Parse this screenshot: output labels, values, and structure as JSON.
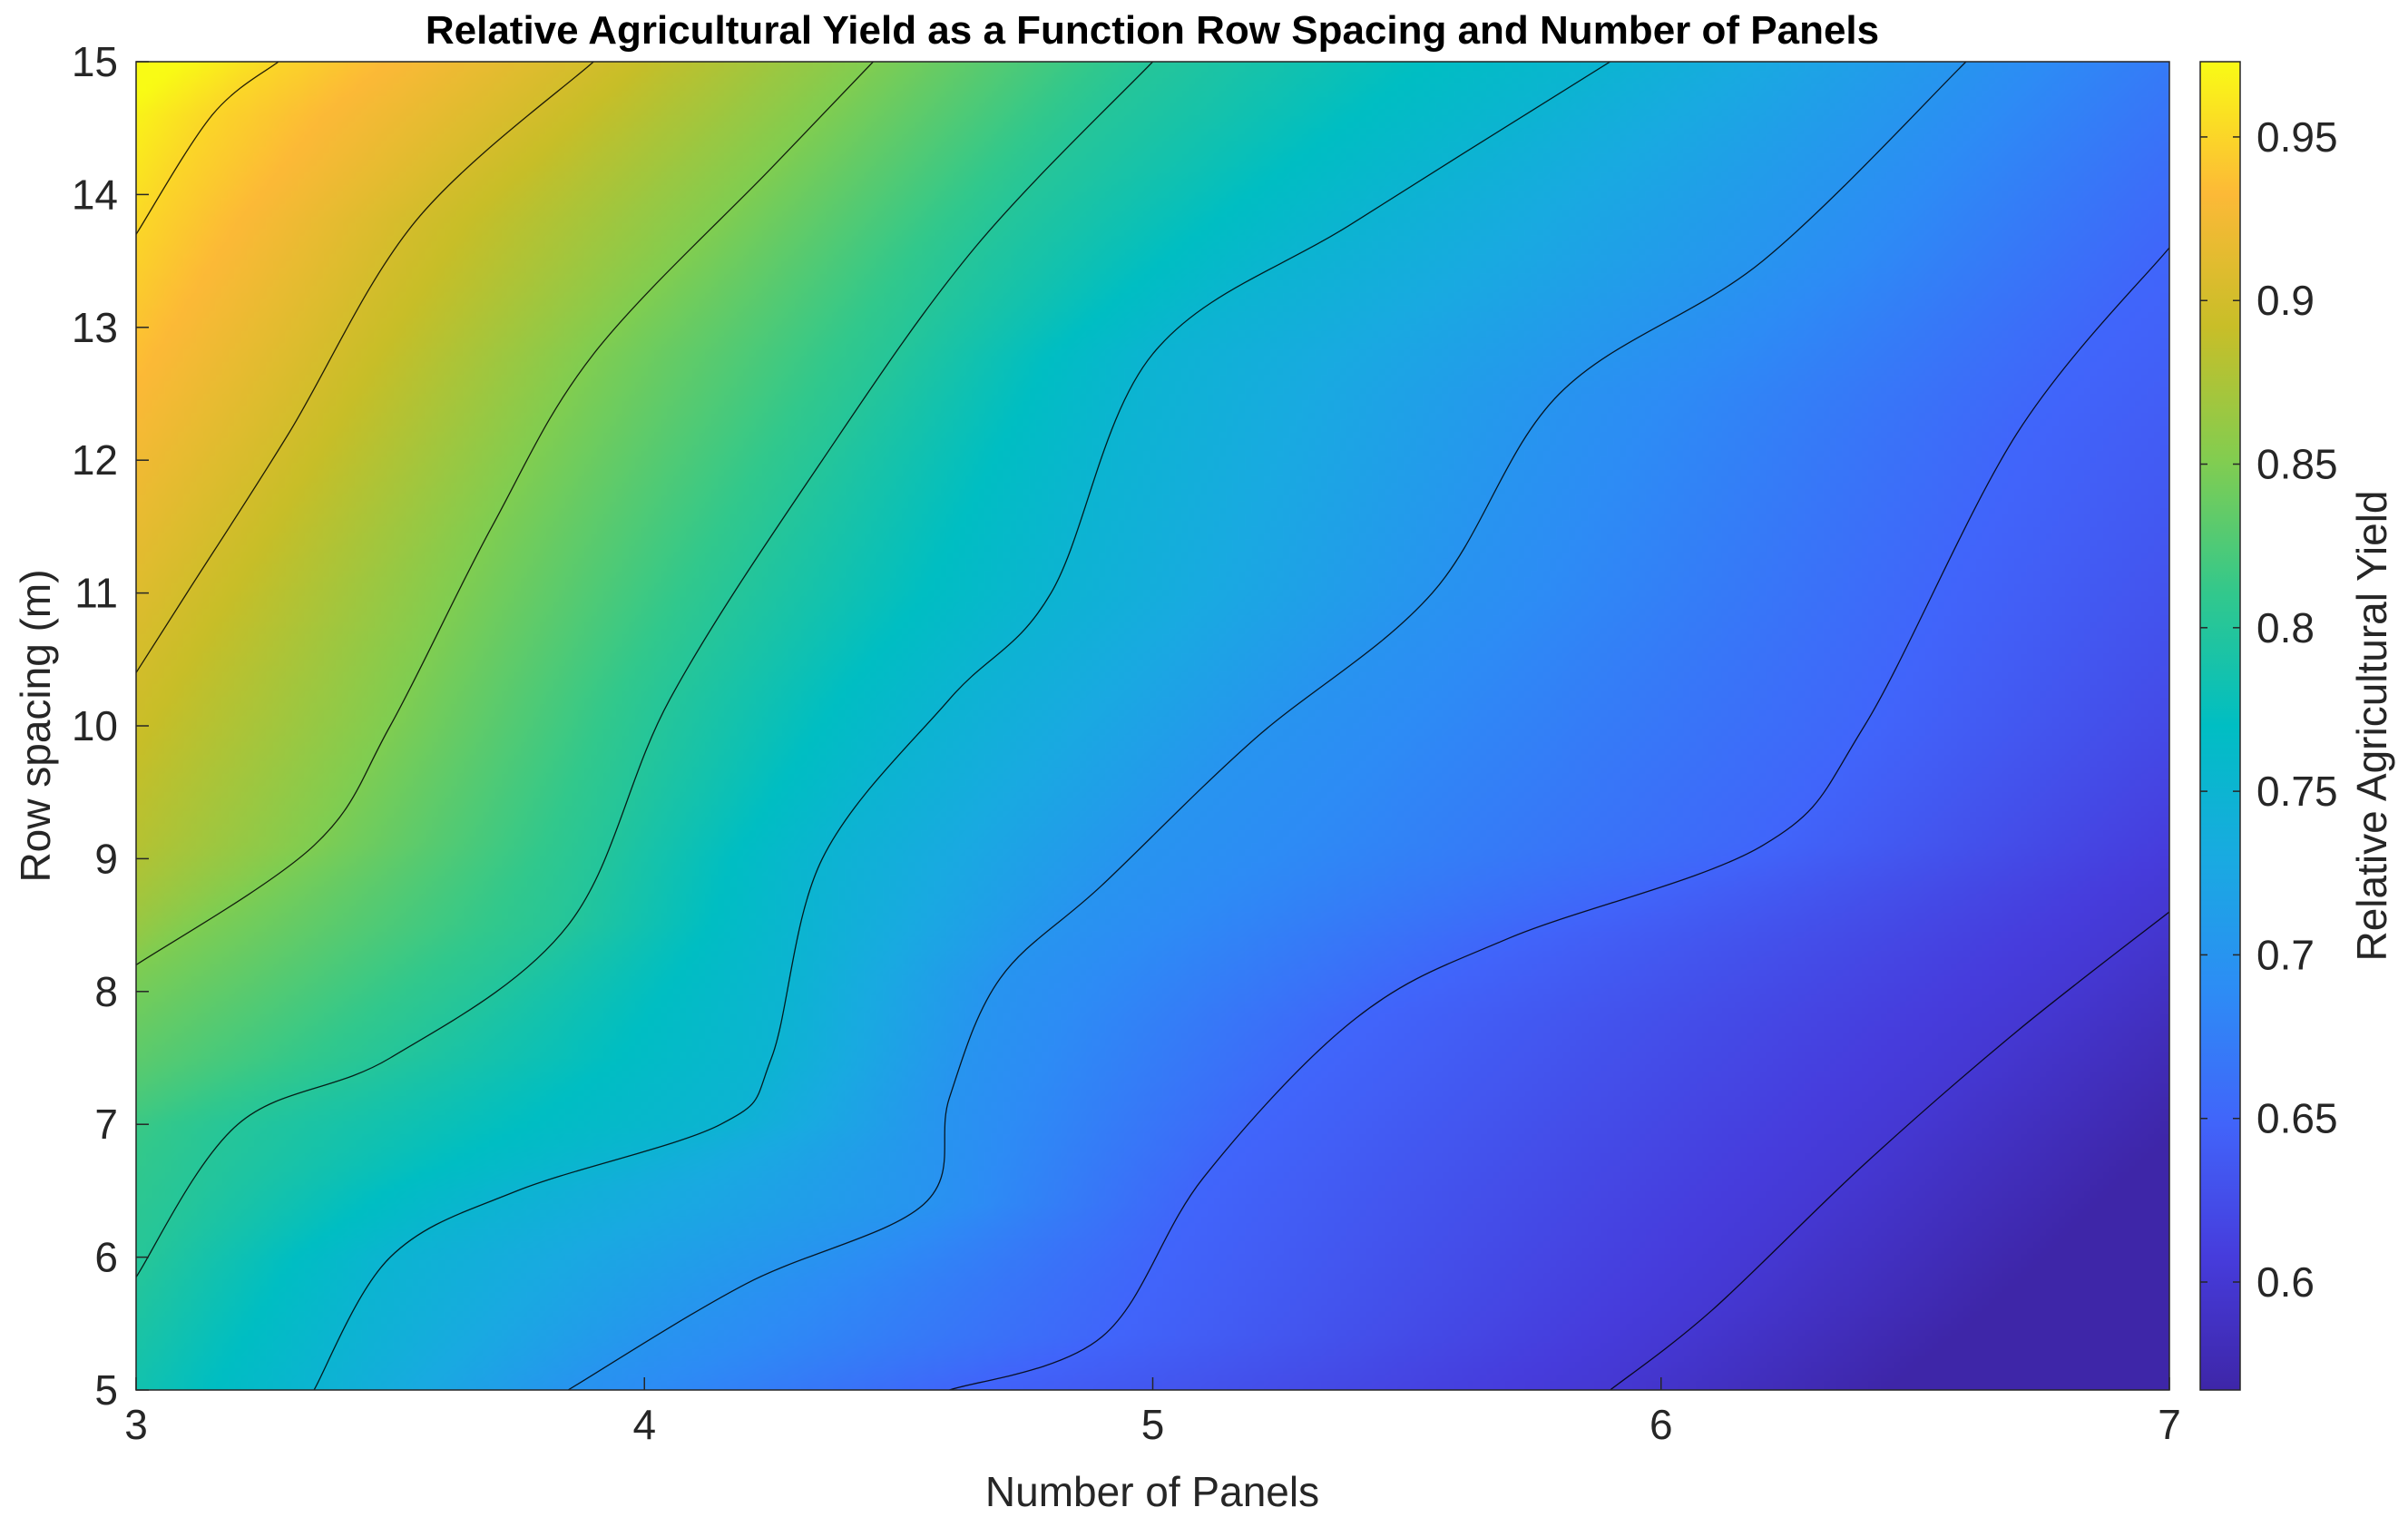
{
  "chart_data": {
    "type": "contour",
    "title": "Relative Agricultural Yield as a Function Row Spacing and Number of Panels",
    "xlabel": "Number of Panels",
    "ylabel": "Row spacing (m)",
    "colorbar_label": "Relative Agricultural Yield",
    "xlim": [
      3,
      7
    ],
    "ylim": [
      5,
      15
    ],
    "x_ticks": [
      "3",
      "4",
      "5",
      "6",
      "7"
    ],
    "y_ticks": [
      "5",
      "6",
      "7",
      "8",
      "9",
      "10",
      "11",
      "12",
      "13",
      "14",
      "15"
    ],
    "clim": [
      0.567,
      0.973
    ],
    "colorbar_ticks": [
      "0.6",
      "0.65",
      "0.7",
      "0.75",
      "0.8",
      "0.85",
      "0.9",
      "0.95"
    ],
    "colormap": "parula",
    "contour_levels": [
      0.6,
      0.65,
      0.7,
      0.75,
      0.8,
      0.85,
      0.9,
      0.95
    ],
    "z_corners": {
      "x3_y5": 0.77,
      "x7_y5": 0.567,
      "x3_y15": 0.973,
      "x7_y15": 0.68
    },
    "contours": [
      {
        "level": 0.6,
        "points": [
          [
            7,
            8.6
          ],
          [
            6.7,
            7.7
          ],
          [
            6.4,
            6.7
          ],
          [
            6.1,
            5.6
          ],
          [
            5.9,
            5
          ]
        ]
      },
      {
        "level": 0.65,
        "points": [
          [
            7,
            13.6
          ],
          [
            6.7,
            12.2
          ],
          [
            6.4,
            10.0
          ],
          [
            6.2,
            9.1
          ],
          [
            5.7,
            8.4
          ],
          [
            5.4,
            7.8
          ],
          [
            5.1,
            6.6
          ],
          [
            4.9,
            5.4
          ],
          [
            4.6,
            5
          ]
        ]
      },
      {
        "level": 0.7,
        "points": [
          [
            6.6,
            15
          ],
          [
            6.2,
            13.5
          ],
          [
            5.8,
            12.5
          ],
          [
            5.55,
            11.0
          ],
          [
            5.2,
            9.9
          ],
          [
            4.9,
            8.8
          ],
          [
            4.7,
            8.1
          ],
          [
            4.6,
            7.2
          ],
          [
            4.55,
            6.4
          ],
          [
            4.2,
            5.8
          ],
          [
            3.85,
            5
          ]
        ]
      },
      {
        "level": 0.75,
        "points": [
          [
            5.9,
            15
          ],
          [
            5.4,
            13.8
          ],
          [
            5.0,
            12.8
          ],
          [
            4.8,
            11.0
          ],
          [
            4.6,
            10.2
          ],
          [
            4.35,
            9.0
          ],
          [
            4.25,
            7.5
          ],
          [
            4.15,
            7.0
          ],
          [
            3.75,
            6.5
          ],
          [
            3.5,
            6.0
          ],
          [
            3.35,
            5
          ]
        ]
      },
      {
        "level": 0.8,
        "points": [
          [
            5.0,
            15
          ],
          [
            4.65,
            13.6
          ],
          [
            4.35,
            12.0
          ],
          [
            4.05,
            10.2
          ],
          [
            3.85,
            8.5
          ],
          [
            3.5,
            7.5
          ],
          [
            3.2,
            7.0
          ],
          [
            3,
            5.85
          ]
        ]
      },
      {
        "level": 0.85,
        "points": [
          [
            4.45,
            15
          ],
          [
            4.25,
            14.2
          ],
          [
            3.9,
            12.8
          ],
          [
            3.7,
            11.5
          ],
          [
            3.5,
            10.0
          ],
          [
            3.35,
            9.1
          ],
          [
            3,
            8.2
          ]
        ]
      },
      {
        "level": 0.9,
        "points": [
          [
            3.9,
            15
          ],
          [
            3.55,
            13.8
          ],
          [
            3.3,
            12.2
          ],
          [
            3.1,
            11.0
          ],
          [
            3,
            10.4
          ]
        ]
      },
      {
        "level": 0.95,
        "points": [
          [
            3.28,
            15
          ],
          [
            3.15,
            14.6
          ],
          [
            3,
            13.7
          ]
        ]
      }
    ]
  }
}
